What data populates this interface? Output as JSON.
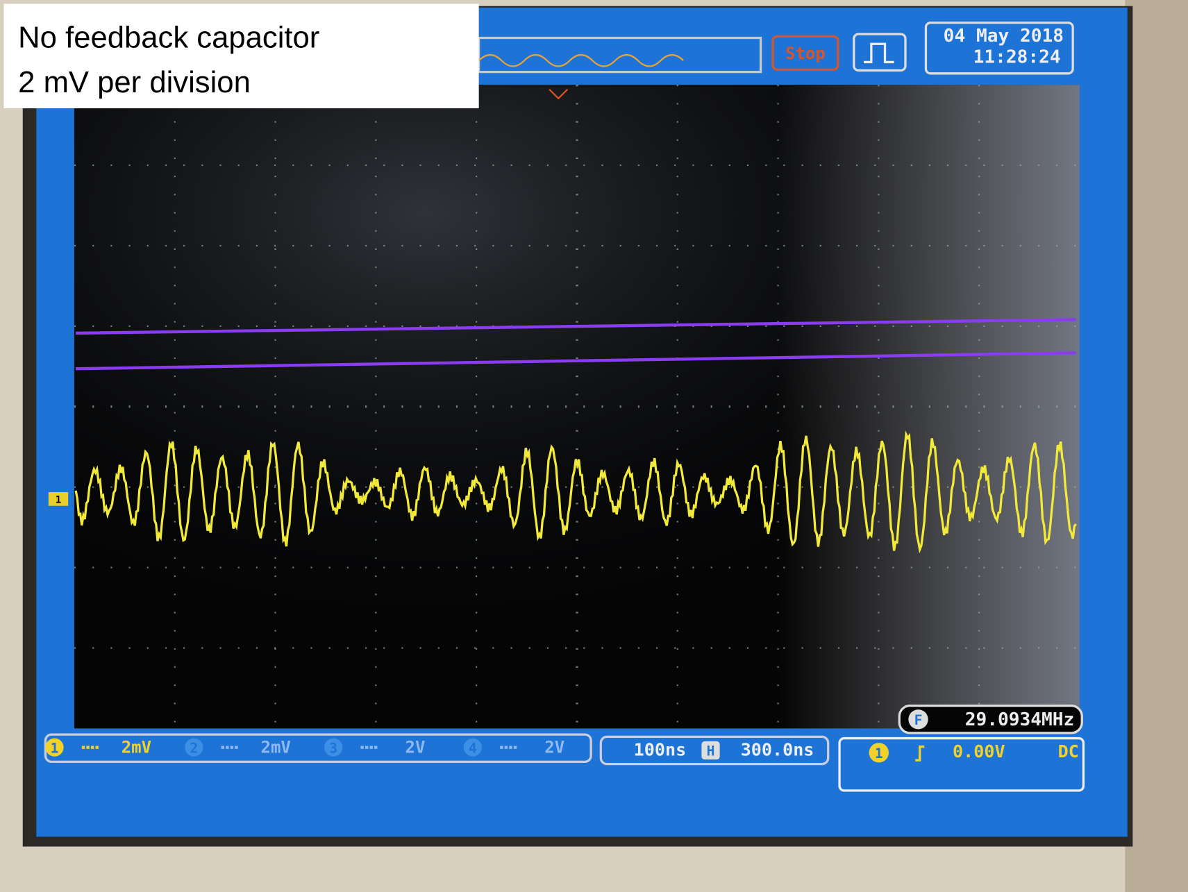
{
  "annotation": {
    "lines": [
      "No feedback capacitor",
      "2 mV per division"
    ]
  },
  "status": {
    "run_state": "Stop",
    "date": "04 May 2018",
    "time": "11:28:24"
  },
  "channel_marker": "1",
  "channels": [
    {
      "number": "1",
      "scale": "2mV"
    },
    {
      "number": "2",
      "scale": "2mV"
    },
    {
      "number": "3",
      "scale": "2V"
    },
    {
      "number": "4",
      "scale": "2V"
    }
  ],
  "timebase": {
    "scale": "100ns",
    "icon": "H",
    "delay": "300.0ns"
  },
  "trigger": {
    "channel": "1",
    "level": "0.00V",
    "coupling": "DC"
  },
  "frequency": {
    "icon": "F",
    "value": "29.0934MHz"
  }
}
